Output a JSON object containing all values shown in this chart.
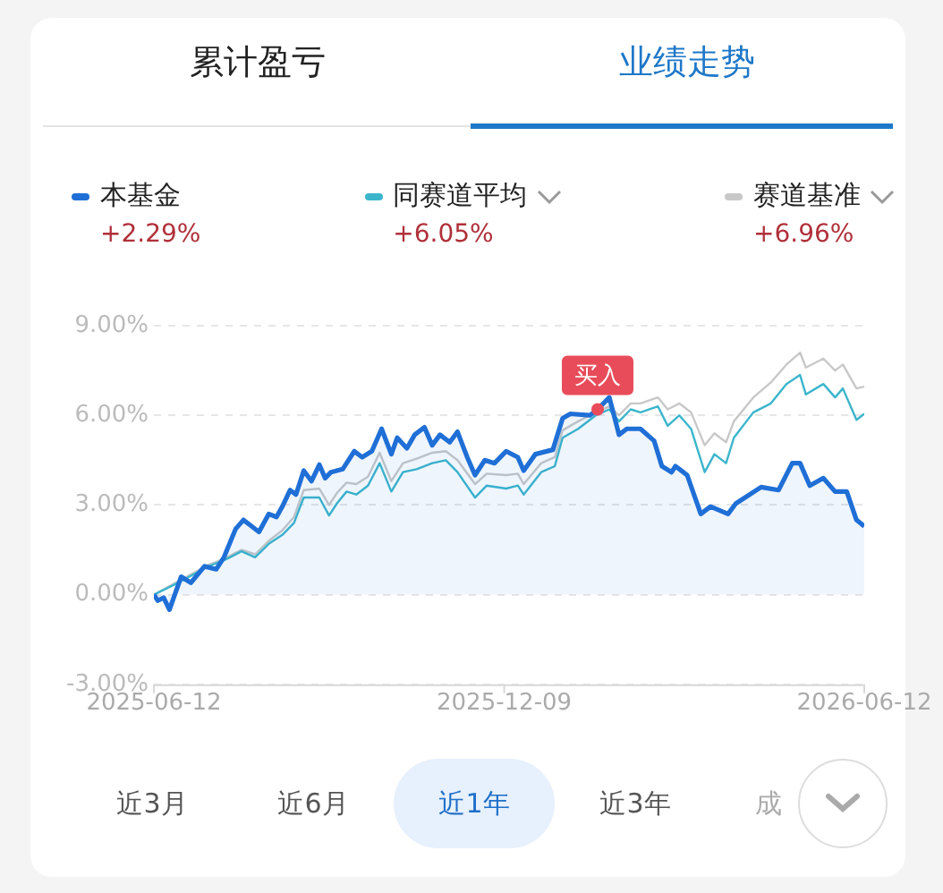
{
  "chart_data": {
    "type": "line",
    "annotations": [
      "累计盈亏",
      "业绩走势",
      "+2.29%",
      "+6.05%",
      "+6.96%",
      "近3月",
      "近6月",
      "近1年",
      "近3年",
      "成",
      {
        "text": "买入",
        "x": "2026-01-26",
        "y": 6.2
      }
    ],
    "series": [
      {
        "name": "本基金",
        "type": "area",
        "color": "#1f6fd6",
        "x": [
          "2025-06-12",
          "2025-06-14",
          "2025-06-17",
          "2025-06-20",
          "2025-06-26",
          "2025-07-01",
          "2025-07-08",
          "2025-07-14",
          "2025-07-18",
          "2025-07-24",
          "2025-07-28",
          "2025-08-01",
          "2025-08-05",
          "2025-08-10",
          "2025-08-14",
          "2025-08-17",
          "2025-08-21",
          "2025-08-24",
          "2025-08-28",
          "2025-09-01",
          "2025-09-05",
          "2025-09-08",
          "2025-09-11",
          "2025-09-17",
          "2025-09-23",
          "2025-09-27",
          "2025-10-02",
          "2025-10-07",
          "2025-10-12",
          "2025-10-15",
          "2025-10-20",
          "2025-10-24",
          "2025-10-29",
          "2025-11-02",
          "2025-11-06",
          "2025-11-11",
          "2025-11-15",
          "2025-11-20",
          "2025-11-24",
          "2025-11-29",
          "2025-12-04",
          "2025-12-10",
          "2025-12-16",
          "2025-12-19",
          "2025-12-25",
          "2026-01-03",
          "2026-01-08",
          "2026-01-12",
          "2026-01-22",
          "2026-01-26",
          "2026-02-01",
          "2026-02-06",
          "2026-02-10",
          "2026-02-17",
          "2026-02-24",
          "2026-02-28",
          "2026-03-05",
          "2026-03-07",
          "2026-03-13",
          "2026-03-20",
          "2026-03-25",
          "2026-04-03",
          "2026-04-07",
          "2026-04-20",
          "2026-04-29",
          "2026-05-06",
          "2026-05-10",
          "2026-05-15",
          "2026-05-22",
          "2026-05-28",
          "2026-06-03",
          "2026-06-08",
          "2026-06-12"
        ],
        "values": [
          0,
          -0.2,
          -0.1,
          -0.5,
          0.6,
          0.4,
          0.95,
          0.85,
          1.25,
          2.2,
          2.5,
          2.3,
          2.1,
          2.7,
          2.6,
          2.95,
          3.5,
          3.35,
          4.15,
          3.8,
          4.35,
          3.9,
          4.1,
          4.2,
          4.8,
          4.6,
          4.8,
          5.55,
          4.7,
          5.25,
          4.9,
          5.35,
          5.6,
          5.0,
          5.35,
          5.1,
          5.45,
          4.6,
          4.0,
          4.5,
          4.4,
          4.8,
          4.6,
          4.15,
          4.7,
          4.85,
          5.9,
          6.05,
          6.0,
          6.2,
          6.6,
          5.35,
          5.55,
          5.55,
          5.15,
          4.3,
          4.1,
          4.3,
          4.0,
          2.7,
          2.95,
          2.7,
          3.05,
          3.6,
          3.5,
          4.4,
          4.4,
          3.65,
          3.9,
          3.45,
          3.45,
          2.5,
          2.29
        ]
      },
      {
        "name": "同赛道平均",
        "color": "#3bb5cc",
        "x": [
          "2025-06-12",
          "2025-06-26",
          "2025-07-10",
          "2025-07-18",
          "2025-07-27",
          "2025-08-03",
          "2025-08-10",
          "2025-08-17",
          "2025-08-23",
          "2025-08-28",
          "2025-09-05",
          "2025-09-10",
          "2025-09-14",
          "2025-09-19",
          "2025-09-24",
          "2025-09-30",
          "2025-10-06",
          "2025-10-12",
          "2025-10-18",
          "2025-10-25",
          "2025-11-02",
          "2025-11-09",
          "2025-11-15",
          "2025-11-24",
          "2025-11-30",
          "2025-12-10",
          "2025-12-16",
          "2025-12-19",
          "2025-12-28",
          "2026-01-04",
          "2026-01-08",
          "2026-01-16",
          "2026-01-25",
          "2026-02-01",
          "2026-02-06",
          "2026-02-12",
          "2026-02-17",
          "2026-02-26",
          "2026-03-03",
          "2026-03-09",
          "2026-03-15",
          "2026-03-22",
          "2026-03-27",
          "2026-04-02",
          "2026-04-06",
          "2026-04-16",
          "2026-04-25",
          "2026-05-03",
          "2026-05-10",
          "2026-05-13",
          "2026-05-22",
          "2026-05-28",
          "2026-06-01",
          "2026-06-08",
          "2026-06-12"
        ],
        "values": [
          0,
          0.45,
          0.95,
          1.15,
          1.45,
          1.25,
          1.7,
          2.0,
          2.4,
          3.25,
          3.25,
          2.65,
          3.05,
          3.45,
          3.35,
          3.65,
          4.4,
          3.45,
          4.1,
          4.2,
          4.4,
          4.5,
          4.1,
          3.25,
          3.65,
          3.55,
          3.65,
          3.35,
          4.1,
          4.3,
          5.25,
          5.55,
          6.0,
          6.2,
          5.8,
          6.2,
          6.1,
          6.3,
          5.65,
          6.0,
          5.55,
          4.1,
          4.7,
          4.4,
          5.25,
          6.1,
          6.4,
          7.05,
          7.35,
          6.7,
          7.05,
          6.6,
          6.9,
          5.85,
          6.05
        ]
      },
      {
        "name": "赛道基准",
        "color": "#c8c8c8",
        "x": [
          "2025-06-12",
          "2025-06-26",
          "2025-07-10",
          "2025-07-18",
          "2025-07-27",
          "2025-08-03",
          "2025-08-10",
          "2025-08-17",
          "2025-08-23",
          "2025-08-28",
          "2025-09-05",
          "2025-09-10",
          "2025-09-14",
          "2025-09-19",
          "2025-09-24",
          "2025-09-30",
          "2025-10-06",
          "2025-10-12",
          "2025-10-18",
          "2025-10-25",
          "2025-11-02",
          "2025-11-09",
          "2025-11-15",
          "2025-11-24",
          "2025-11-30",
          "2025-12-10",
          "2025-12-16",
          "2025-12-19",
          "2025-12-28",
          "2026-01-04",
          "2026-01-08",
          "2026-01-16",
          "2026-01-25",
          "2026-02-01",
          "2026-02-06",
          "2026-02-12",
          "2026-02-17",
          "2026-02-26",
          "2026-03-03",
          "2026-03-09",
          "2026-03-15",
          "2026-03-22",
          "2026-03-27",
          "2026-04-02",
          "2026-04-06",
          "2026-04-16",
          "2026-04-25",
          "2026-05-03",
          "2026-05-10",
          "2026-05-13",
          "2026-05-22",
          "2026-05-28",
          "2026-06-01",
          "2026-06-08",
          "2026-06-12"
        ],
        "values": [
          0,
          0.5,
          1.0,
          1.2,
          1.5,
          1.35,
          1.8,
          2.15,
          2.6,
          3.5,
          3.55,
          3.0,
          3.4,
          3.75,
          3.7,
          3.95,
          4.75,
          3.8,
          4.4,
          4.55,
          4.75,
          4.8,
          4.5,
          3.7,
          4.05,
          4.0,
          4.05,
          3.7,
          4.4,
          4.6,
          5.5,
          5.8,
          6.1,
          6.3,
          6.0,
          6.4,
          6.4,
          6.6,
          6.2,
          6.4,
          6.1,
          5.0,
          5.4,
          5.1,
          5.8,
          6.6,
          7.1,
          7.7,
          8.1,
          7.6,
          7.9,
          7.5,
          7.7,
          6.9,
          6.96
        ]
      }
    ],
    "xlim": [
      "2025-06-12",
      "2026-06-12"
    ],
    "xticks": [
      "2025-06-12",
      "2025-12-09",
      "2026-06-12"
    ],
    "ylim": [
      -3,
      9
    ],
    "yticks": [
      {
        "value": -3,
        "label": "-3.00%"
      },
      {
        "value": 0,
        "label": "0.00%"
      },
      {
        "value": 3,
        "label": "3.00%"
      },
      {
        "value": 6,
        "label": "6.00%"
      },
      {
        "value": 9,
        "label": "9.00%"
      }
    ],
    "grid": "y",
    "legend": "top",
    "marker": "none",
    "line_style": "solid"
  }
}
